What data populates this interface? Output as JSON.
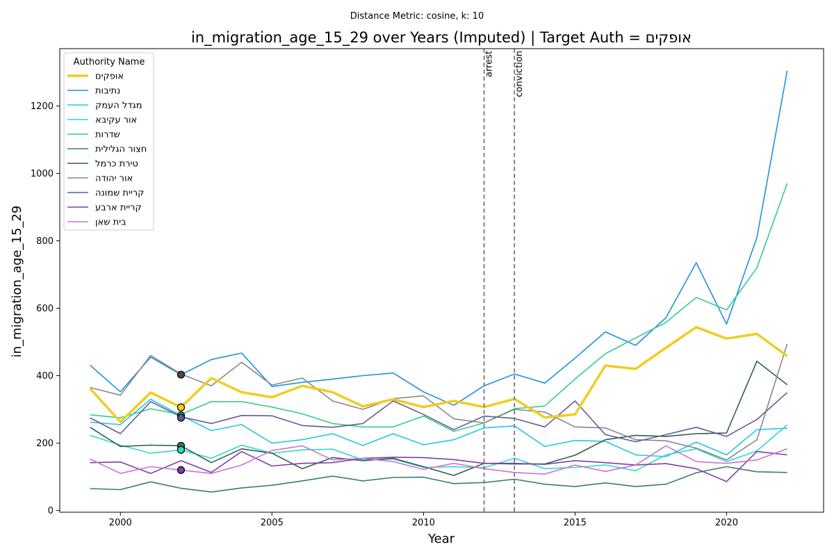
{
  "chart_data": {
    "type": "line",
    "suptitle": "Distance Metric: cosine, k: 10",
    "title": "in_migration_age_15_29 over Years (Imputed) | Target Auth = אופקים",
    "xlabel": "Year",
    "ylabel": "in_migration_age_15_29",
    "xlim": [
      1998,
      2023.2
    ],
    "ylim": [
      -5,
      1370
    ],
    "xticks": [
      2000,
      2005,
      2010,
      2015,
      2020
    ],
    "yticks": [
      0,
      200,
      400,
      600,
      800,
      1000,
      1200
    ],
    "grid": false,
    "legend": {
      "title": "Authority Name",
      "placement": "top-left"
    },
    "x": [
      1999,
      2000,
      2001,
      2002,
      2003,
      2004,
      2005,
      2006,
      2007,
      2008,
      2009,
      2010,
      2011,
      2012,
      2013,
      2014,
      2015,
      2016,
      2017,
      2018,
      2019,
      2020,
      2021,
      2022
    ],
    "vlines": [
      {
        "x": 2012,
        "label": "arrest",
        "color": "#777777"
      },
      {
        "x": 2013,
        "label": "conviction",
        "color": "#777777"
      }
    ],
    "series": [
      {
        "name": "אופקים",
        "color": "#f2cb1f",
        "target": true,
        "values": [
          362,
          263,
          350,
          306,
          393,
          351,
          336,
          370,
          351,
          309,
          330,
          307,
          325,
          307,
          331,
          276,
          285,
          430,
          420,
          483,
          544,
          510,
          524,
          458
        ]
      },
      {
        "name": "נתיבות",
        "color": "#1e90e0",
        "values": [
          431,
          352,
          455,
          403,
          448,
          467,
          368,
          380,
          390,
          400,
          408,
          352,
          312,
          370,
          405,
          378,
          452,
          530,
          490,
          572,
          735,
          553,
          810,
          1305
        ]
      },
      {
        "name": "מגדל העמק",
        "color": "#22c6ea",
        "values": [
          262,
          255,
          330,
          282,
          237,
          255,
          200,
          210,
          228,
          193,
          228,
          195,
          210,
          245,
          251,
          190,
          208,
          205,
          165,
          160,
          203,
          165,
          240,
          244
        ]
      },
      {
        "name": "אור עקיבא",
        "color": "#2fd8c7",
        "values": [
          223,
          194,
          170,
          180,
          155,
          194,
          170,
          180,
          182,
          150,
          153,
          128,
          130,
          127,
          155,
          124,
          128,
          135,
          118,
          165,
          183,
          145,
          177,
          254
        ]
      },
      {
        "name": "שדרות",
        "color": "#34cc8c",
        "values": [
          284,
          275,
          302,
          285,
          323,
          323,
          307,
          287,
          258,
          248,
          248,
          280,
          235,
          260,
          302,
          310,
          390,
          465,
          512,
          558,
          632,
          595,
          720,
          971
        ]
      },
      {
        "name": "חצור הגלילית",
        "color": "#3a7d68",
        "values": [
          65,
          62,
          85,
          66,
          55,
          67,
          75,
          88,
          102,
          88,
          98,
          99,
          80,
          83,
          93,
          78,
          71,
          82,
          71,
          78,
          112,
          130,
          115,
          113
        ]
      },
      {
        "name": "טירת כרמל",
        "color": "#2f5e4e",
        "values": [
          247,
          190,
          194,
          192,
          142,
          183,
          170,
          124,
          157,
          148,
          155,
          130,
          104,
          140,
          138,
          138,
          164,
          210,
          223,
          220,
          228,
          230,
          443,
          373
        ]
      },
      {
        "name": "אור יהודה",
        "color": "#858a88",
        "values": [
          365,
          342,
          460,
          405,
          370,
          440,
          372,
          393,
          325,
          300,
          332,
          340,
          272,
          260,
          300,
          292,
          248,
          245,
          210,
          207,
          185,
          150,
          210,
          494
        ]
      },
      {
        "name": "קריית שמונה",
        "color": "#5f5b96",
        "values": [
          275,
          228,
          323,
          278,
          258,
          282,
          281,
          252,
          247,
          258,
          325,
          285,
          240,
          280,
          273,
          248,
          325,
          225,
          204,
          225,
          247,
          220,
          270,
          350
        ]
      },
      {
        "name": "קריית ארבע",
        "color": "#7c3fac",
        "values": [
          142,
          144,
          110,
          148,
          113,
          175,
          132,
          140,
          142,
          155,
          158,
          157,
          151,
          140,
          140,
          137,
          148,
          142,
          135,
          139,
          124,
          86,
          175,
          165
        ]
      },
      {
        "name": "בית שאן",
        "color": "#c972d6",
        "values": [
          153,
          110,
          130,
          120,
          110,
          135,
          178,
          192,
          150,
          155,
          145,
          122,
          140,
          124,
          113,
          108,
          135,
          116,
          135,
          192,
          145,
          140,
          150,
          183
        ]
      }
    ],
    "markers": [
      {
        "x": 2002,
        "y": 306,
        "color": "#f2cb1f"
      },
      {
        "x": 2002,
        "y": 403,
        "color": "#4a4a4a"
      },
      {
        "x": 2002,
        "y": 282,
        "color": "#3a8f9a"
      },
      {
        "x": 2002,
        "y": 275,
        "color": "#5f5b96"
      },
      {
        "x": 2002,
        "y": 192,
        "color": "#3a7d68"
      },
      {
        "x": 2002,
        "y": 180,
        "color": "#2fd8c7"
      },
      {
        "x": 2002,
        "y": 120,
        "color": "#7c3fac"
      }
    ]
  }
}
